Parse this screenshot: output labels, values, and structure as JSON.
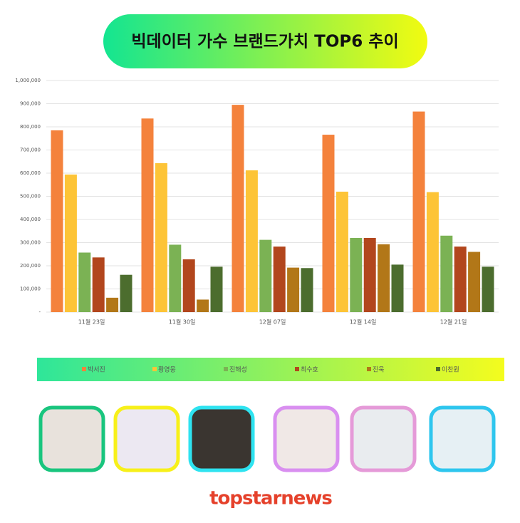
{
  "chart_data": {
    "type": "bar",
    "title": "빅데이터 가수 브랜드가치 TOP6 추이",
    "categories": [
      "11월 23일",
      "11월 30일",
      "12월 07일",
      "12월 14일",
      "12월 21일"
    ],
    "series": [
      {
        "name": "박서진",
        "color": "#f4823c",
        "values": [
          785000,
          836000,
          895000,
          766000,
          866000
        ]
      },
      {
        "name": "황영웅",
        "color": "#fdc437",
        "values": [
          594000,
          643000,
          612000,
          520000,
          518000
        ]
      },
      {
        "name": "진해성",
        "color": "#7bb254",
        "values": [
          257000,
          291000,
          312000,
          320000,
          330000
        ]
      },
      {
        "name": "최수호",
        "color": "#b2461d",
        "values": [
          236000,
          228000,
          283000,
          320000,
          283000
        ]
      },
      {
        "name": "진욱",
        "color": "#b27718",
        "values": [
          62000,
          54000,
          192000,
          293000,
          260000
        ]
      },
      {
        "name": "이찬원",
        "color": "#4c6d2e",
        "values": [
          161000,
          196000,
          190000,
          205000,
          196000
        ]
      }
    ],
    "ylim": [
      0,
      1000000
    ],
    "yticks": [
      {
        "value": 0,
        "label": "-"
      },
      {
        "value": 100000,
        "label": "100,000"
      },
      {
        "value": 200000,
        "label": "200,000"
      },
      {
        "value": 300000,
        "label": "300,000"
      },
      {
        "value": 400000,
        "label": "400,000"
      },
      {
        "value": 500000,
        "label": "500,000"
      },
      {
        "value": 600000,
        "label": "600,000"
      },
      {
        "value": 700000,
        "label": "700,000"
      },
      {
        "value": 800000,
        "label": "800,000"
      },
      {
        "value": 900000,
        "label": "900,000"
      },
      {
        "value": 1000000,
        "label": "1,000,000"
      }
    ],
    "grid": true
  },
  "logo": "topstarnews"
}
